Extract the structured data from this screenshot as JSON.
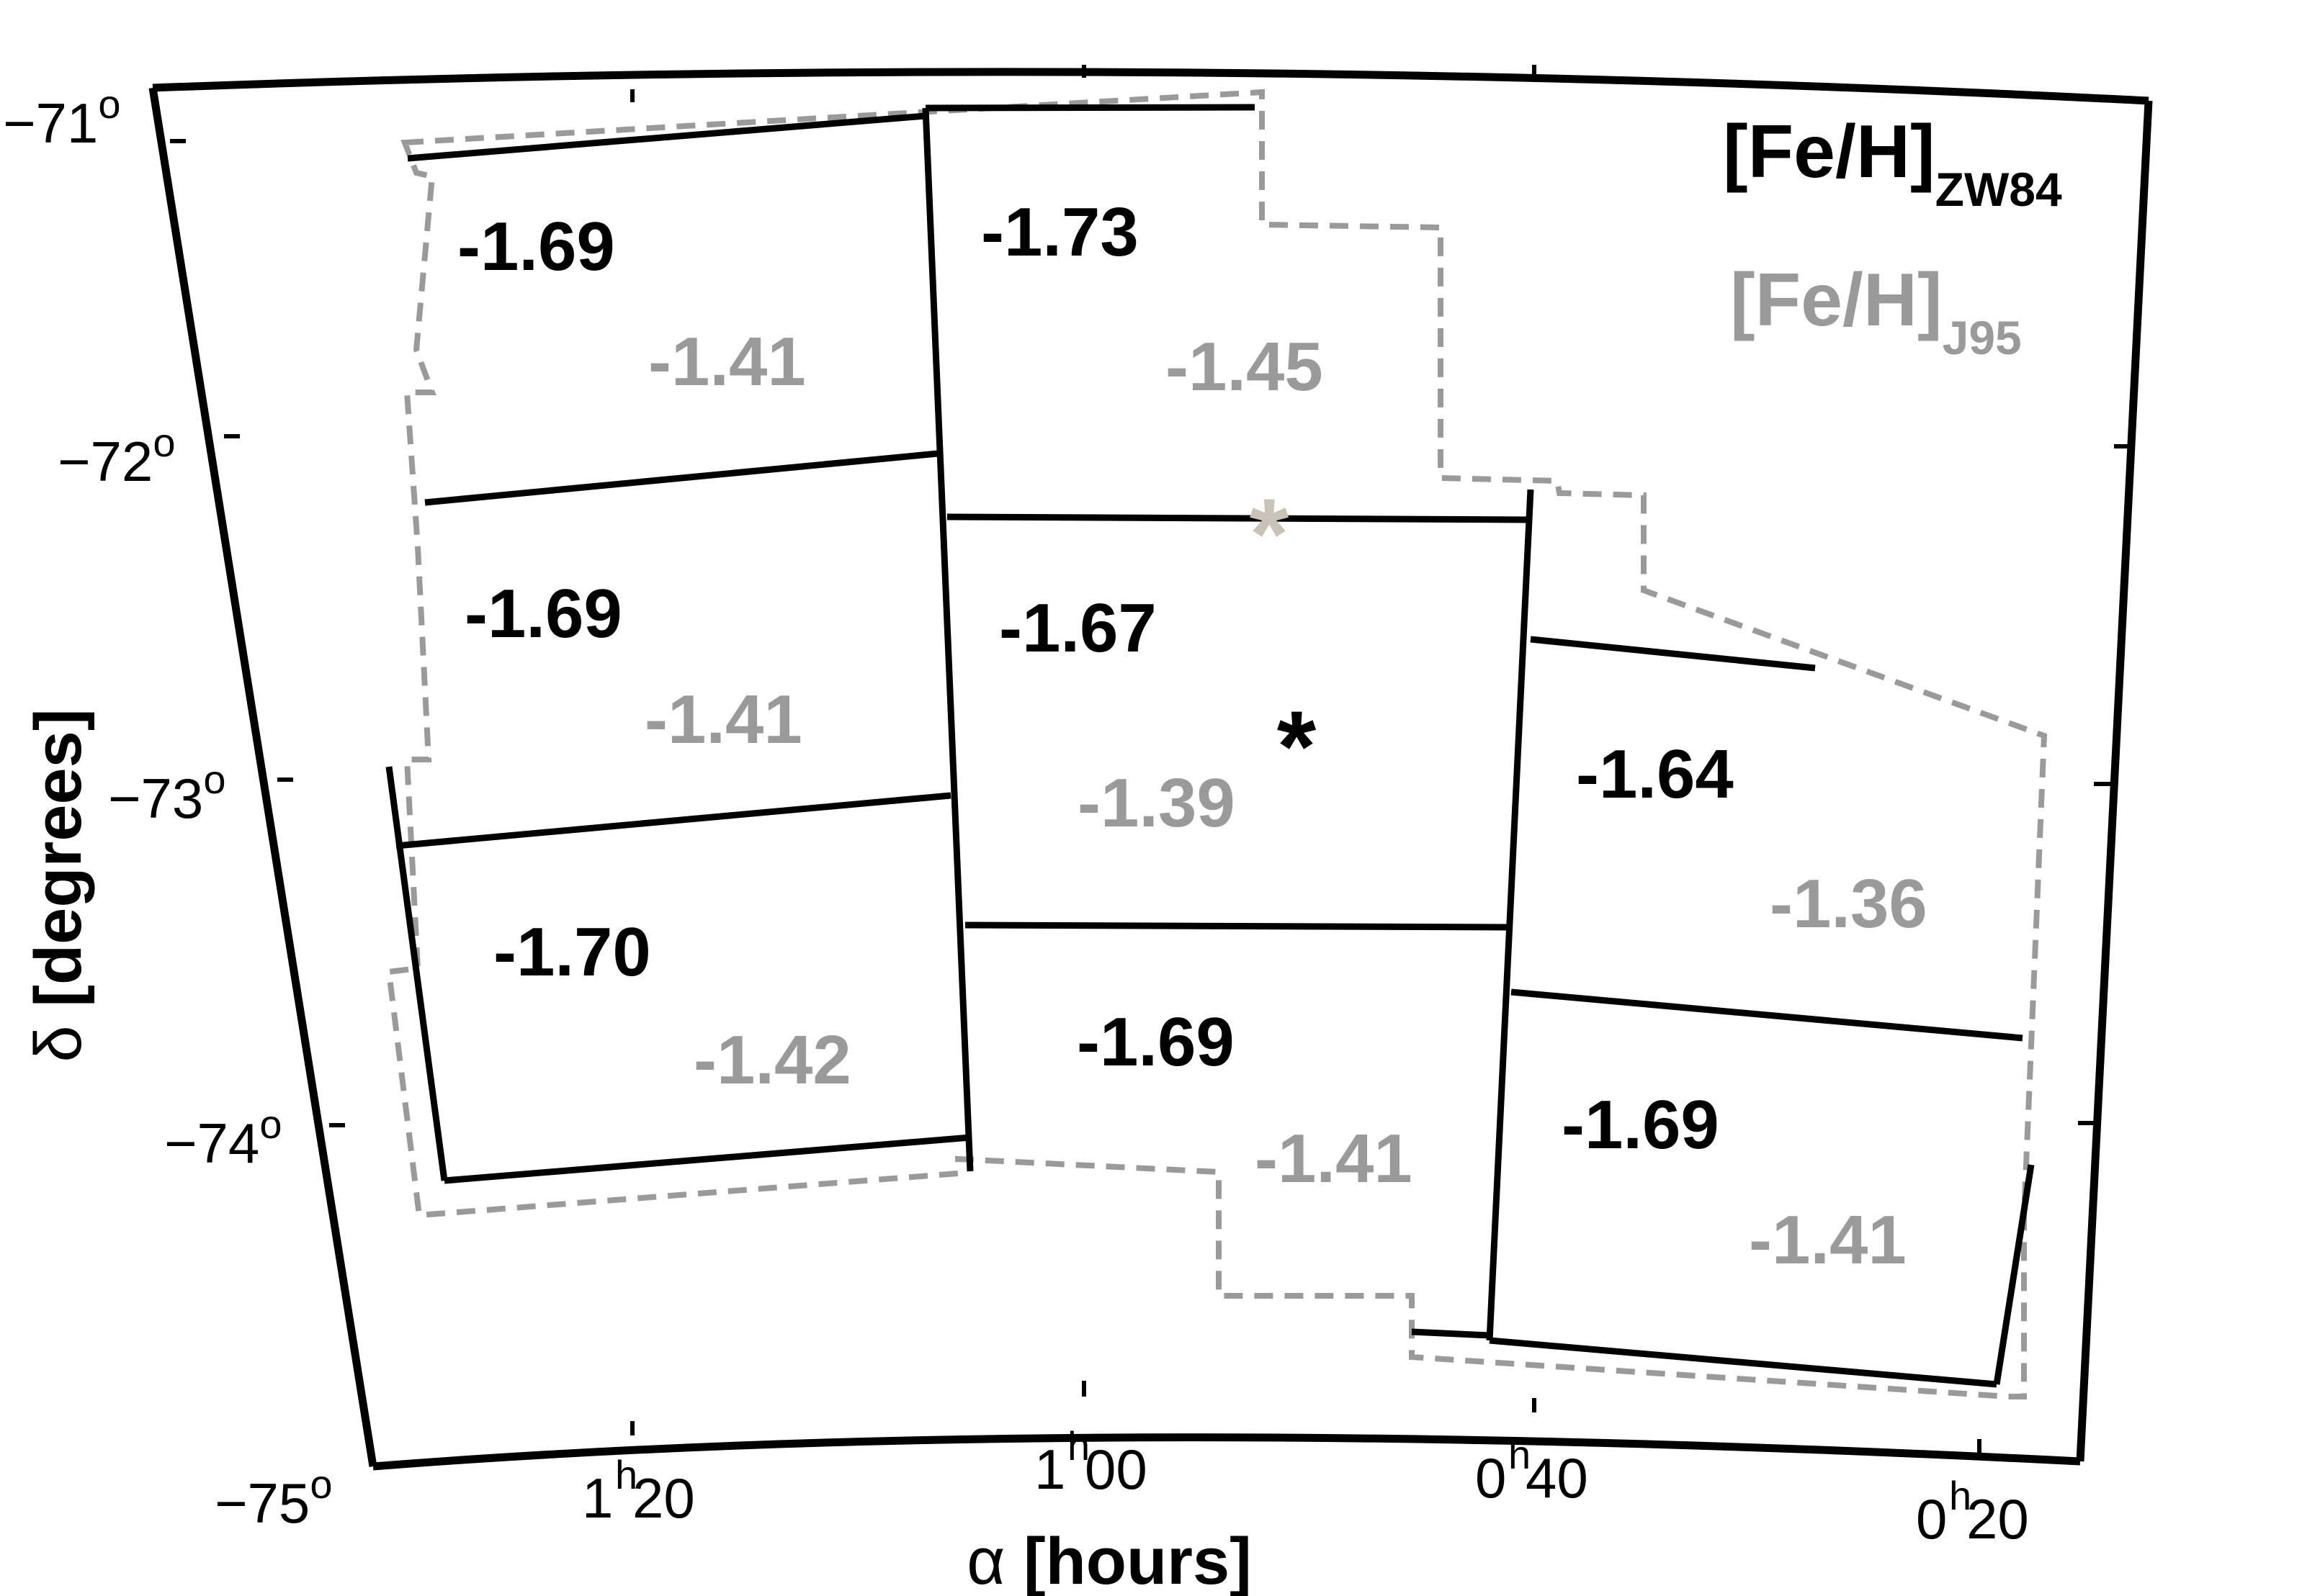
{
  "chart_data": {
    "type": "map",
    "xlabel_symbol": "α",
    "xlabel_text": " [hours]",
    "ylabel_symbol": "δ",
    "ylabel_text": " [degrees]",
    "x_ticks": [
      {
        "h": "1",
        "m": "20"
      },
      {
        "h": "1",
        "m": "00"
      },
      {
        "h": "0",
        "m": "40"
      },
      {
        "h": "0",
        "m": "20"
      }
    ],
    "y_ticks": [
      {
        "deg": "−71",
        "sup": "o"
      },
      {
        "deg": "−72",
        "sup": "o"
      },
      {
        "deg": "−73",
        "sup": "o"
      },
      {
        "deg": "−74",
        "sup": "o"
      },
      {
        "deg": "−75",
        "sup": "o"
      }
    ],
    "legend": [
      {
        "base": "[Fe/H]",
        "sub": "ZW84",
        "color": "#000000"
      },
      {
        "base": "[Fe/H]",
        "sub": "J95",
        "color": "#9a9a9a"
      }
    ],
    "colors": {
      "zw84": "#000000",
      "j95": "#9a9a9a",
      "marker_light": "#c8c2b8"
    },
    "fields": [
      {
        "zw84": "-1.69",
        "j95": "-1.41"
      },
      {
        "zw84": "-1.69",
        "j95": "-1.41"
      },
      {
        "zw84": "-1.70",
        "j95": "-1.42"
      },
      {
        "zw84": "-1.73",
        "j95": "-1.45"
      },
      {
        "zw84": "-1.67",
        "j95": "-1.39"
      },
      {
        "zw84": "-1.69",
        "j95": "-1.41"
      },
      {
        "zw84": "-1.64",
        "j95": "-1.36"
      },
      {
        "zw84": "-1.69",
        "j95": "-1.41"
      }
    ],
    "markers": [
      {
        "symbol": "*",
        "color": "#c8c2b8"
      },
      {
        "symbol": "*",
        "color": "#000000"
      }
    ]
  }
}
